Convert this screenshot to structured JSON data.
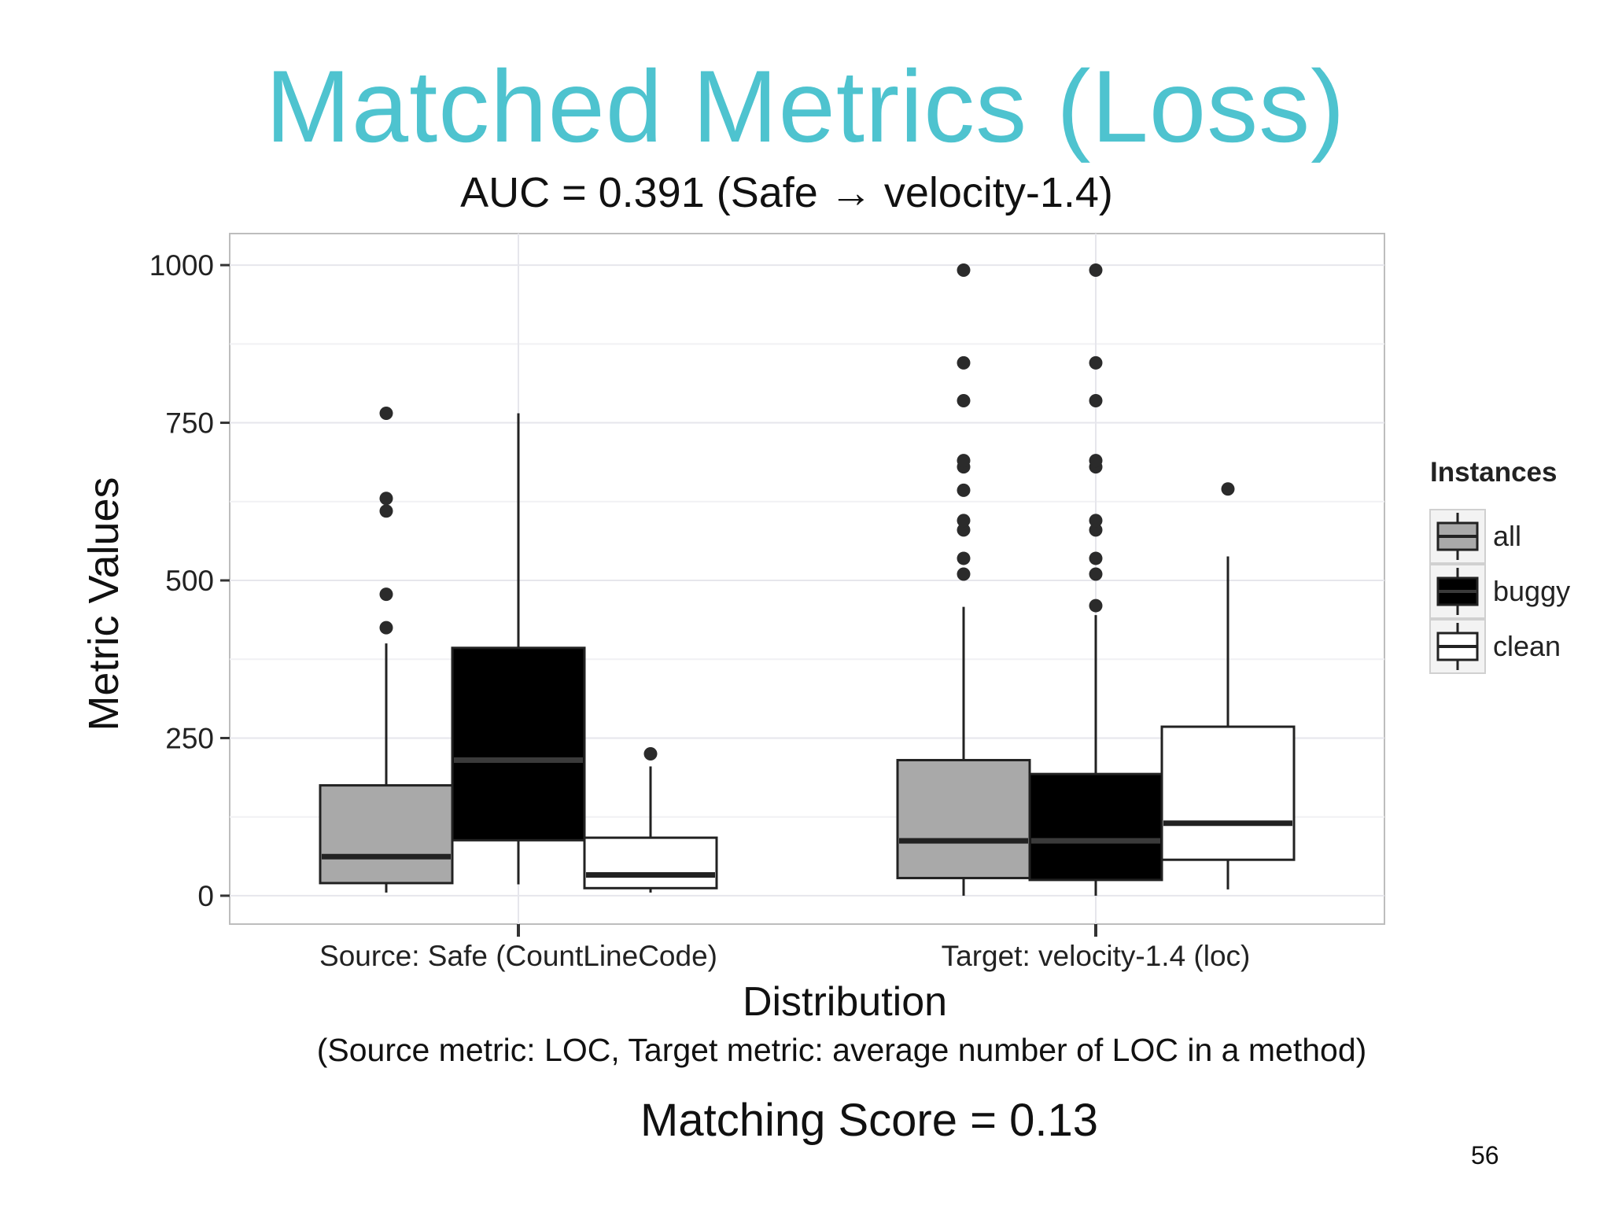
{
  "slide": {
    "title": "Matched Metrics (Loss)",
    "subtitle": "AUC = 0.391 (Safe → velocity-1.4)",
    "note": "(Source metric: LOC,  Target metric: average number of LOC in a method)",
    "score": "Matching Score = 0.13",
    "page_number": "56"
  },
  "chart_data": {
    "type": "boxplot",
    "title": "",
    "xlabel": "Distribution",
    "ylabel": "Metric Values",
    "ylim": [
      -45,
      1050
    ],
    "yticks": [
      0,
      250,
      500,
      750,
      1000
    ],
    "categories": [
      "Source: Safe (CountLineCode)",
      "Target: velocity-1.4 (loc)"
    ],
    "legend": {
      "title": "Instances",
      "position": "right"
    },
    "grid": true,
    "series": [
      {
        "name": "all",
        "color": "#a9a9a9",
        "boxes": [
          {
            "whisker_low": 5,
            "q1": 20,
            "median": 62,
            "q3": 175,
            "whisker_high": 400,
            "outliers": [
              425,
              478,
              610,
              630,
              765
            ]
          },
          {
            "whisker_low": 0,
            "q1": 28,
            "median": 87,
            "q3": 215,
            "whisker_high": 458,
            "outliers": [
              510,
              535,
              580,
              595,
              643,
              680,
              690,
              785,
              845,
              992
            ]
          }
        ]
      },
      {
        "name": "buggy",
        "color": "#000000",
        "boxes": [
          {
            "whisker_low": 18,
            "q1": 88,
            "median": 215,
            "q3": 393,
            "whisker_high": 765,
            "outliers": []
          },
          {
            "whisker_low": 0,
            "q1": 25,
            "median": 87,
            "q3": 193,
            "whisker_high": 445,
            "outliers": [
              460,
              510,
              535,
              580,
              595,
              680,
              690,
              785,
              845,
              992
            ]
          }
        ]
      },
      {
        "name": "clean",
        "color": "#ffffff",
        "boxes": [
          {
            "whisker_low": 5,
            "q1": 12,
            "median": 33,
            "q3": 92,
            "whisker_high": 205,
            "outliers": [
              225
            ]
          },
          {
            "whisker_low": 10,
            "q1": 57,
            "median": 115,
            "q3": 268,
            "whisker_high": 538,
            "outliers": [
              645
            ]
          }
        ]
      }
    ]
  }
}
